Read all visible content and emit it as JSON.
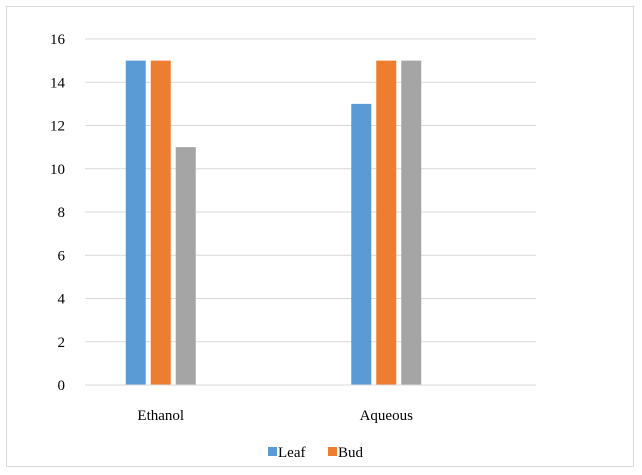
{
  "chart_data": {
    "type": "bar",
    "categories": [
      "Ethanol",
      "Aqueous"
    ],
    "series": [
      {
        "name": "Leaf",
        "values": [
          15,
          13
        ],
        "color": "#5b9bd5"
      },
      {
        "name": "Bud",
        "values": [
          15,
          15
        ],
        "color": "#ed7d31"
      },
      {
        "name": "",
        "values": [
          11,
          15
        ],
        "color": "#a5a5a5"
      }
    ],
    "title": "",
    "xlabel": "",
    "ylabel": "",
    "ylim": [
      0,
      16
    ],
    "yticks": [
      0,
      2,
      4,
      6,
      8,
      10,
      12,
      14,
      16
    ],
    "grid": true,
    "legend_position": "bottom"
  }
}
